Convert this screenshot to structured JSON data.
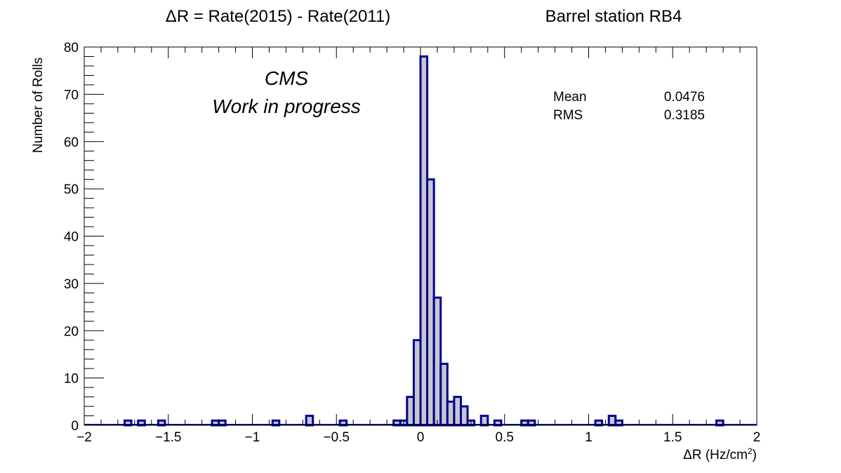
{
  "header": {
    "title_left": "ΔR = Rate(2015) - Rate(2011)",
    "title_right": "Barrel station RB4"
  },
  "annotation": {
    "line1": "CMS",
    "line2": "Work in progress"
  },
  "stats": {
    "mean_label": "Mean",
    "mean_value": "0.0476",
    "rms_label": "RMS",
    "rms_value": "0.3185"
  },
  "chart_data": {
    "type": "bar",
    "title": "ΔR = Rate(2015) - Rate(2011)",
    "ylabel": "Number of Rolls",
    "xlabel_main": "ΔR (Hz/cm",
    "xlabel_sup": "2",
    "xlabel_close": ")",
    "xlim": [
      -2,
      2
    ],
    "ylim": [
      0,
      80
    ],
    "bin_width": 0.04,
    "bins": [
      {
        "x": -1.74,
        "count": 1
      },
      {
        "x": -1.66,
        "count": 1
      },
      {
        "x": -1.54,
        "count": 1
      },
      {
        "x": -1.22,
        "count": 1
      },
      {
        "x": -1.18,
        "count": 1
      },
      {
        "x": -0.86,
        "count": 1
      },
      {
        "x": -0.66,
        "count": 2
      },
      {
        "x": -0.46,
        "count": 1
      },
      {
        "x": -0.14,
        "count": 1
      },
      {
        "x": -0.1,
        "count": 1
      },
      {
        "x": -0.06,
        "count": 6
      },
      {
        "x": -0.02,
        "count": 18
      },
      {
        "x": 0.02,
        "count": 78
      },
      {
        "x": 0.06,
        "count": 52
      },
      {
        "x": 0.1,
        "count": 27
      },
      {
        "x": 0.14,
        "count": 13
      },
      {
        "x": 0.18,
        "count": 5
      },
      {
        "x": 0.22,
        "count": 6
      },
      {
        "x": 0.26,
        "count": 4
      },
      {
        "x": 0.3,
        "count": 1
      },
      {
        "x": 0.38,
        "count": 2
      },
      {
        "x": 0.46,
        "count": 1
      },
      {
        "x": 0.62,
        "count": 1
      },
      {
        "x": 0.66,
        "count": 1
      },
      {
        "x": 1.06,
        "count": 1
      },
      {
        "x": 1.14,
        "count": 2
      },
      {
        "x": 1.18,
        "count": 1
      },
      {
        "x": 1.78,
        "count": 1
      }
    ],
    "x_ticks": [
      {
        "v": -2,
        "label": "−2"
      },
      {
        "v": -1.5,
        "label": "−1.5"
      },
      {
        "v": -1,
        "label": "−1"
      },
      {
        "v": -0.5,
        "label": "−0.5"
      },
      {
        "v": 0,
        "label": "0"
      },
      {
        "v": 0.5,
        "label": "0.5"
      },
      {
        "v": 1,
        "label": "1"
      },
      {
        "v": 1.5,
        "label": "1.5"
      },
      {
        "v": 2,
        "label": "2"
      }
    ],
    "y_ticks": [
      {
        "v": 0,
        "label": "0"
      },
      {
        "v": 10,
        "label": "10"
      },
      {
        "v": 20,
        "label": "20"
      },
      {
        "v": 30,
        "label": "30"
      },
      {
        "v": 40,
        "label": "40"
      },
      {
        "v": 50,
        "label": "50"
      },
      {
        "v": 60,
        "label": "60"
      },
      {
        "v": 70,
        "label": "70"
      },
      {
        "v": 80,
        "label": "80"
      }
    ],
    "line_color": "#000099",
    "fill_color": "#c8c8c8",
    "grid": false
  }
}
